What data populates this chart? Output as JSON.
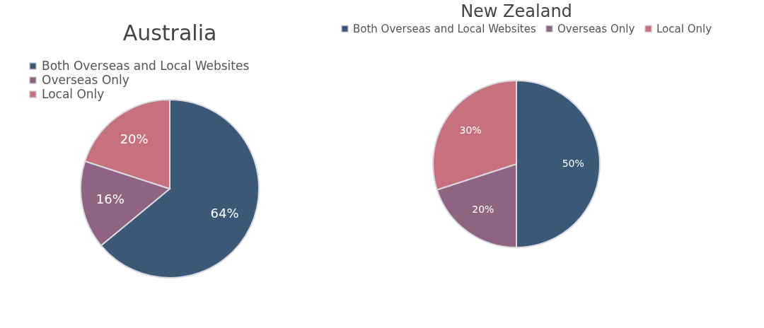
{
  "chart_data": [
    {
      "type": "pie",
      "title": "Australia",
      "categories": [
        "Both Overseas and Local Websites",
        "Overseas Only",
        "Local Only"
      ],
      "values": [
        64,
        16,
        20
      ],
      "value_labels": [
        "64%",
        "16%",
        "20%"
      ],
      "colors": [
        "#3b5876",
        "#8e6480",
        "#c7717f"
      ],
      "legend": "top left"
    },
    {
      "type": "pie",
      "title": "New Zealand",
      "categories": [
        "Both Overseas and Local Websites",
        "Overseas Only",
        "Local Only"
      ],
      "values": [
        50,
        20,
        30
      ],
      "value_labels": [
        "50%",
        "20%",
        "30%"
      ],
      "colors": [
        "#3b5876",
        "#8e6480",
        "#c7717f"
      ],
      "legend": "top"
    }
  ]
}
